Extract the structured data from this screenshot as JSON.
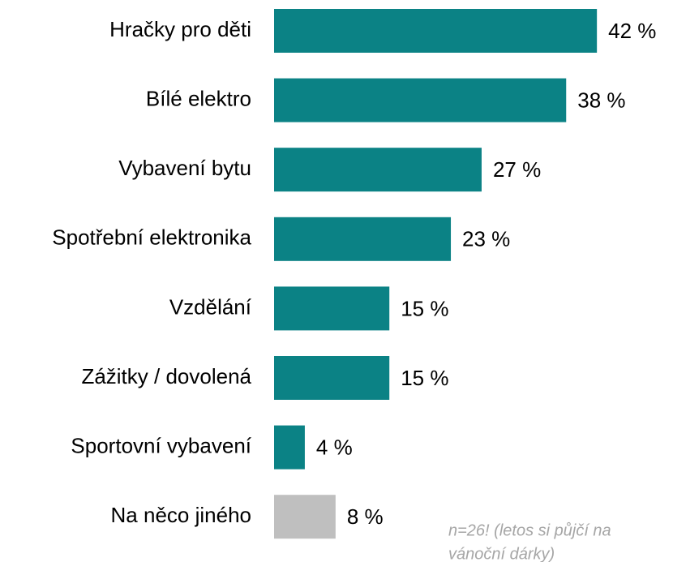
{
  "chart_data": {
    "type": "bar",
    "orientation": "horizontal",
    "categories": [
      "Hračky pro děti",
      "Bílé elektro",
      "Vybavení bytu",
      "Spotřební elektronika",
      "Vzdělání",
      "Zážitky / dovolená",
      "Sportovní vybavení",
      "Na něco jiného"
    ],
    "values": [
      42,
      38,
      27,
      23,
      15,
      15,
      4,
      8
    ],
    "value_labels": [
      "42 %",
      "38 %",
      "27 %",
      "23 %",
      "15 %",
      "15 %",
      "4 %",
      "8 %"
    ],
    "colors": [
      "#0b8285",
      "#0b8285",
      "#0b8285",
      "#0b8285",
      "#0b8285",
      "#0b8285",
      "#0b8285",
      "#bfbfbf"
    ],
    "annotation": [
      "n=26! (letos si půjčí na",
      "vánoční dárky)"
    ]
  }
}
